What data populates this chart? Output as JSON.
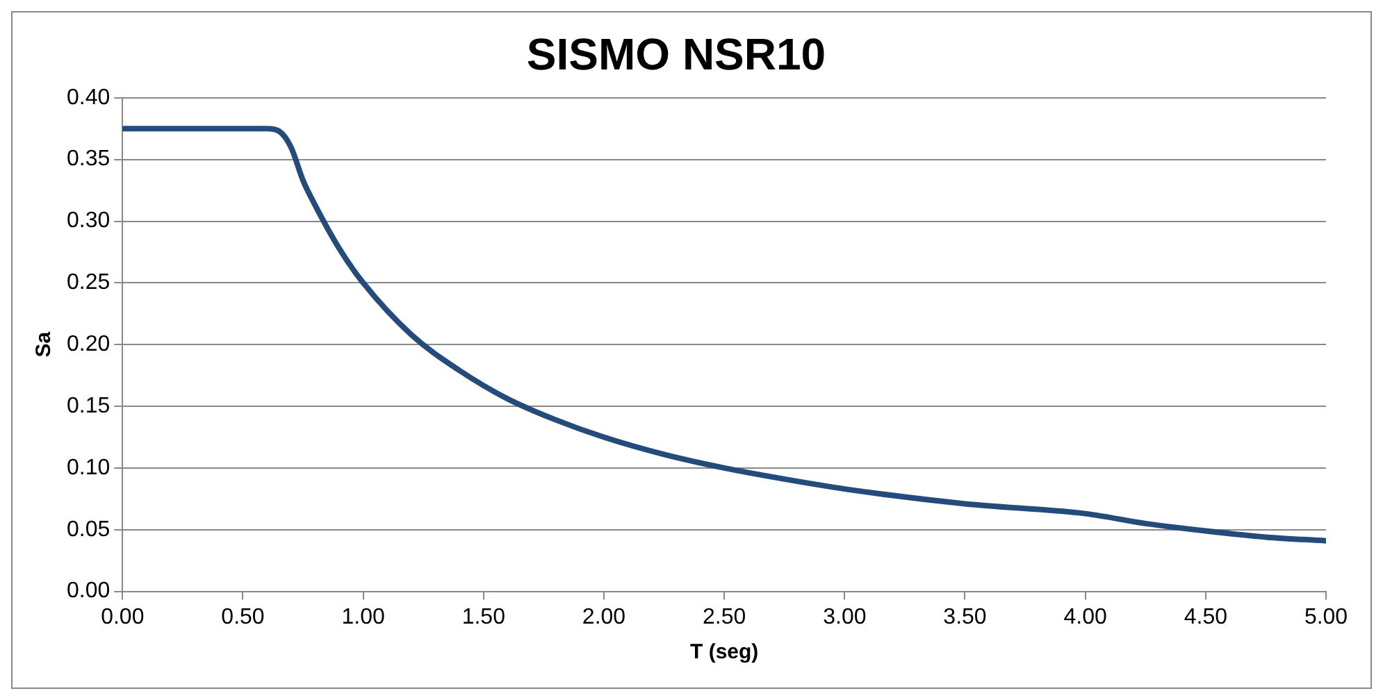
{
  "chart_data": {
    "type": "line",
    "title": "SISMO NSR10",
    "xlabel": "T (seg)",
    "ylabel": "Sa",
    "x": [
      0,
      0.3,
      0.6,
      0.65,
      0.7,
      0.75,
      0.8,
      0.9,
      1.0,
      1.2,
      1.4,
      1.6,
      1.8,
      2.0,
      2.25,
      2.5,
      2.75,
      3.0,
      3.5,
      4.0,
      4.25,
      4.5,
      4.75,
      5.0
    ],
    "series": [
      {
        "color": "#234b7c",
        "values": [
          0.375,
          0.375,
          0.375,
          0.373,
          0.36,
          0.333,
          0.313,
          0.278,
          0.25,
          0.208,
          0.179,
          0.156,
          0.139,
          0.125,
          0.111,
          0.1,
          0.091,
          0.083,
          0.071,
          0.063,
          0.055,
          0.049,
          0.044,
          0.041
        ]
      }
    ],
    "xlim": [
      0,
      5
    ],
    "ylim": [
      0,
      0.4
    ],
    "xticks": [
      {
        "value": 0,
        "label": "0.00"
      },
      {
        "value": 0.5,
        "label": "0.50"
      },
      {
        "value": 1,
        "label": "1.00"
      },
      {
        "value": 1.5,
        "label": "1.50"
      },
      {
        "value": 2,
        "label": "2.00"
      },
      {
        "value": 2.5,
        "label": "2.50"
      },
      {
        "value": 3,
        "label": "3.00"
      },
      {
        "value": 3.5,
        "label": "3.50"
      },
      {
        "value": 4,
        "label": "4.00"
      },
      {
        "value": 4.5,
        "label": "4.50"
      },
      {
        "value": 5,
        "label": "5.00"
      }
    ],
    "yticks": [
      {
        "value": 0,
        "label": "0.00"
      },
      {
        "value": 0.05,
        "label": "0.05"
      },
      {
        "value": 0.1,
        "label": "0.10"
      },
      {
        "value": 0.15,
        "label": "0.15"
      },
      {
        "value": 0.2,
        "label": "0.20"
      },
      {
        "value": 0.25,
        "label": "0.25"
      },
      {
        "value": 0.3,
        "label": "0.30"
      },
      {
        "value": 0.35,
        "label": "0.35"
      },
      {
        "value": 0.4,
        "label": "0.40"
      }
    ],
    "grid": "y",
    "legend": false,
    "marker": "none",
    "line_style": "solid"
  }
}
